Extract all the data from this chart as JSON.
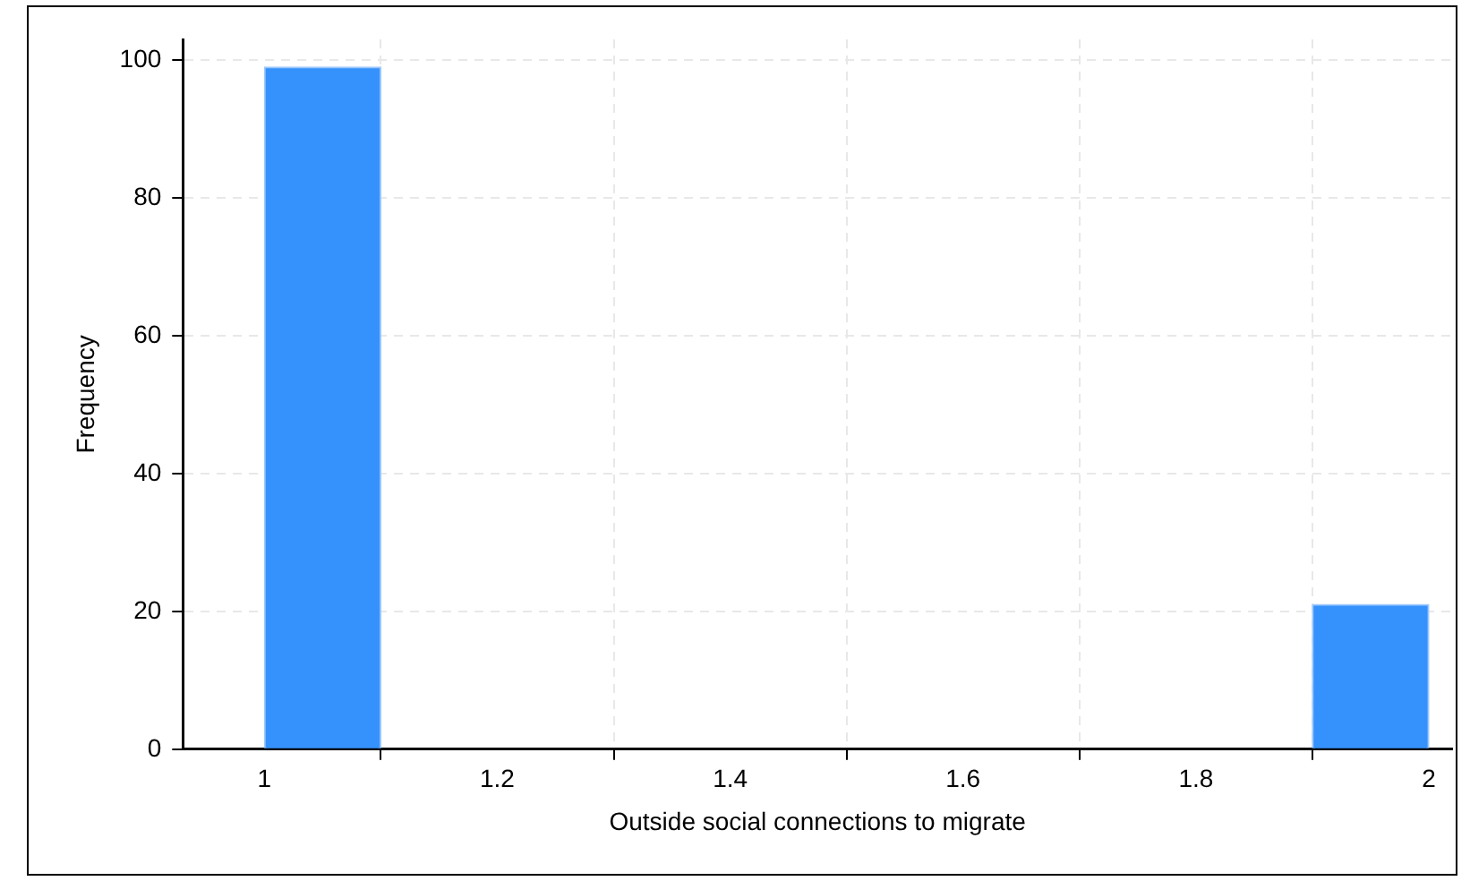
{
  "chart_data": {
    "type": "histogram",
    "xlabel": "Outside social connections to migrate",
    "ylabel": "Frequency",
    "bins": [
      1,
      1.1,
      1.2,
      1.3,
      1.4,
      1.5,
      1.6,
      1.7,
      1.8,
      1.9,
      2
    ],
    "values": [
      99,
      0,
      0,
      0,
      0,
      0,
      0,
      0,
      0,
      21
    ],
    "color": "#3592fc",
    "xlim": [
      0.93,
      2.02
    ],
    "xticks": [
      1,
      1.2,
      1.4,
      1.6,
      1.8,
      2
    ],
    "ylim": [
      0,
      103
    ],
    "yticks": [
      0,
      20,
      40,
      60,
      80,
      100
    ],
    "grid": true,
    "legend": false
  }
}
